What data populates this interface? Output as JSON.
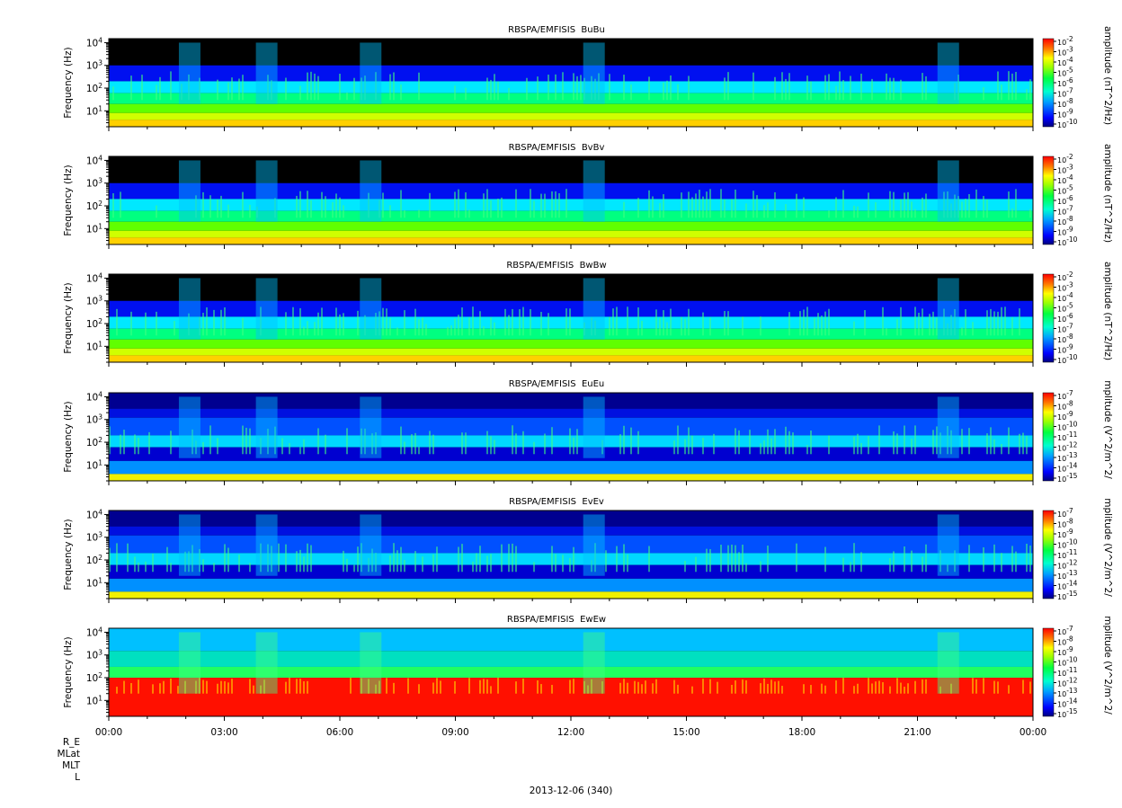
{
  "chart_data": [
    {
      "type": "heatmap",
      "title": "RBSPA/EMFISIS  BuBu",
      "ylabel": "Frequency (Hz)",
      "yscale": "log",
      "ylim": [
        2,
        15000
      ],
      "yticks": [
        "10^1",
        "10^2",
        "10^3",
        "10^4"
      ],
      "colorbar": {
        "label": "amplitude (nT^2/Hz)",
        "ticks": [
          "10^-2",
          "10^-3",
          "10^-4",
          "10^-5",
          "10^-6",
          "10^-7",
          "10^-8",
          "10^-9",
          "10^-10"
        ],
        "range": [
          1e-10,
          0.01
        ]
      }
    },
    {
      "type": "heatmap",
      "title": "RBSPA/EMFISIS  BvBv",
      "ylabel": "Frequency (Hz)",
      "yscale": "log",
      "ylim": [
        2,
        15000
      ],
      "yticks": [
        "10^1",
        "10^2",
        "10^3",
        "10^4"
      ],
      "colorbar": {
        "label": "amplitude (nT^2/Hz)",
        "ticks": [
          "10^-2",
          "10^-3",
          "10^-4",
          "10^-5",
          "10^-6",
          "10^-7",
          "10^-8",
          "10^-9",
          "10^-10"
        ],
        "range": [
          1e-10,
          0.01
        ]
      }
    },
    {
      "type": "heatmap",
      "title": "RBSPA/EMFISIS  BwBw",
      "ylabel": "Frequency (Hz)",
      "yscale": "log",
      "ylim": [
        2,
        15000
      ],
      "yticks": [
        "10^1",
        "10^2",
        "10^3",
        "10^4"
      ],
      "colorbar": {
        "label": "amplitude (nT^2/Hz)",
        "ticks": [
          "10^-2",
          "10^-3",
          "10^-4",
          "10^-5",
          "10^-6",
          "10^-7",
          "10^-8",
          "10^-9",
          "10^-10"
        ],
        "range": [
          1e-10,
          0.01
        ]
      }
    },
    {
      "type": "heatmap",
      "title": "RBSPA/EMFISIS  EuEu",
      "ylabel": "Frequency (Hz)",
      "yscale": "log",
      "ylim": [
        2,
        15000
      ],
      "yticks": [
        "10^1",
        "10^2",
        "10^3",
        "10^4"
      ],
      "colorbar": {
        "label": "mplitude (V^2/m^2/",
        "ticks": [
          "10^-7",
          "10^-8",
          "10^-9",
          "10^-10",
          "10^-11",
          "10^-12",
          "10^-13",
          "10^-14",
          "10^-15"
        ],
        "range": [
          1e-15,
          1e-07
        ]
      }
    },
    {
      "type": "heatmap",
      "title": "RBSPA/EMFISIS  EvEv",
      "ylabel": "Frequency (Hz)",
      "yscale": "log",
      "ylim": [
        2,
        15000
      ],
      "yticks": [
        "10^1",
        "10^2",
        "10^3",
        "10^4"
      ],
      "colorbar": {
        "label": "mplitude (V^2/m^2/",
        "ticks": [
          "10^-7",
          "10^-8",
          "10^-9",
          "10^-10",
          "10^-11",
          "10^-12",
          "10^-13",
          "10^-14",
          "10^-15"
        ],
        "range": [
          1e-15,
          1e-07
        ]
      }
    },
    {
      "type": "heatmap",
      "title": "RBSPA/EMFISIS  EwEw",
      "ylabel": "Frequency (Hz)",
      "yscale": "log",
      "ylim": [
        2,
        15000
      ],
      "yticks": [
        "10^1",
        "10^2",
        "10^3",
        "10^4"
      ],
      "colorbar": {
        "label": "mplitude (V^2/m^2/",
        "ticks": [
          "10^-7",
          "10^-8",
          "10^-9",
          "10^-10",
          "10^-11",
          "10^-12",
          "10^-13",
          "10^-14",
          "10^-15"
        ],
        "range": [
          1e-15,
          1e-07
        ]
      }
    }
  ],
  "x_axis": {
    "ticks": [
      "00:00",
      "03:00",
      "06:00",
      "09:00",
      "12:00",
      "15:00",
      "18:00",
      "21:00",
      "00:00"
    ],
    "date_label": "2013-12-06 (340)"
  },
  "ephemeris_labels": [
    "R_E",
    "MLat",
    "MLT",
    "L"
  ],
  "colors": {
    "background": "#000000",
    "colormap": [
      "#000080",
      "#0000ff",
      "#00c8ff",
      "#00ff80",
      "#80ff00",
      "#ffff00",
      "#ff8000",
      "#ff0000"
    ]
  }
}
